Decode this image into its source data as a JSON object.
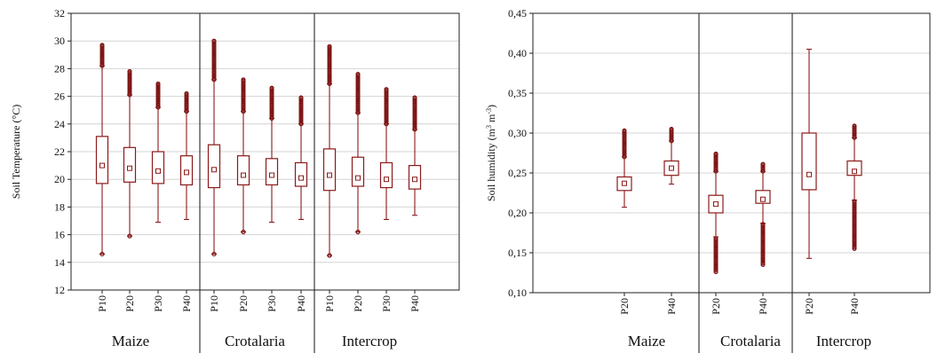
{
  "colors": {
    "box": "#8b1a1a",
    "outlier": "#7d1414"
  },
  "chart_data": [
    {
      "type": "box",
      "ylabel": "Soil Temperature (°C)",
      "ylim": [
        12,
        32
      ],
      "yticks": [
        "12",
        "14",
        "16",
        "18",
        "20",
        "22",
        "24",
        "26",
        "28",
        "30",
        "32"
      ],
      "grid": true,
      "groups": [
        {
          "name": "Maize",
          "series": [
            {
              "name": "P10",
              "min": 14.6,
              "q1": 19.7,
              "median": 21.0,
              "q3": 23.1,
              "max": 28.2,
              "outliers_from": 28.2,
              "outliers_to": 29.7
            },
            {
              "name": "P20",
              "min": 15.9,
              "q1": 19.8,
              "median": 20.8,
              "q3": 22.3,
              "max": 26.1,
              "outliers_from": 26.1,
              "outliers_to": 27.8
            },
            {
              "name": "P30",
              "min": 16.9,
              "q1": 19.7,
              "median": 20.6,
              "q3": 22.0,
              "max": 25.2,
              "outliers_from": 25.2,
              "outliers_to": 26.9
            },
            {
              "name": "P40",
              "min": 17.1,
              "q1": 19.6,
              "median": 20.5,
              "q3": 21.7,
              "max": 24.9,
              "outliers_from": 24.9,
              "outliers_to": 26.2
            }
          ]
        },
        {
          "name": "Crotalaria",
          "series": [
            {
              "name": "P10",
              "min": 14.6,
              "q1": 19.4,
              "median": 20.7,
              "q3": 22.5,
              "max": 27.2,
              "outliers_from": 27.2,
              "outliers_to": 30.0
            },
            {
              "name": "P20",
              "min": 16.2,
              "q1": 19.6,
              "median": 20.3,
              "q3": 21.7,
              "max": 24.9,
              "outliers_from": 24.9,
              "outliers_to": 27.2
            },
            {
              "name": "P30",
              "min": 16.9,
              "q1": 19.6,
              "median": 20.3,
              "q3": 21.5,
              "max": 24.4,
              "outliers_from": 24.4,
              "outliers_to": 26.6
            },
            {
              "name": "P40",
              "min": 17.1,
              "q1": 19.5,
              "median": 20.1,
              "q3": 21.2,
              "max": 24.0,
              "outliers_from": 24.0,
              "outliers_to": 25.9
            }
          ]
        },
        {
          "name": "Intercrop",
          "series": [
            {
              "name": "P10",
              "min": 14.5,
              "q1": 19.2,
              "median": 20.3,
              "q3": 22.2,
              "max": 26.9,
              "outliers_from": 26.9,
              "outliers_to": 29.6
            },
            {
              "name": "P20",
              "min": 16.2,
              "q1": 19.5,
              "median": 20.1,
              "q3": 21.6,
              "max": 24.8,
              "outliers_from": 24.8,
              "outliers_to": 27.6
            },
            {
              "name": "P30",
              "min": 17.1,
              "q1": 19.4,
              "median": 20.0,
              "q3": 21.2,
              "max": 24.0,
              "outliers_from": 24.0,
              "outliers_to": 26.5
            },
            {
              "name": "P40",
              "min": 17.4,
              "q1": 19.3,
              "median": 20.0,
              "q3": 21.0,
              "max": 23.6,
              "outliers_from": 23.6,
              "outliers_to": 25.9
            }
          ]
        }
      ]
    },
    {
      "type": "box",
      "ylabel_main": "Soil humidity (m",
      "ylabel_sup1": "3",
      "ylabel_mid": " m",
      "ylabel_sup2": "-3",
      "ylabel_end": ")",
      "ylim": [
        0.1,
        0.45
      ],
      "yticks": [
        "0,10",
        "0,15",
        "0,20",
        "0,25",
        "0,30",
        "0,35",
        "0,40",
        "0,45"
      ],
      "grid": true,
      "groups": [
        {
          "name": "Maize",
          "series": [
            {
              "name": "P20",
              "min": 0.207,
              "q1": 0.228,
              "median": 0.237,
              "q3": 0.245,
              "max": 0.27,
              "outliers_from": 0.27,
              "outliers_to": 0.303
            },
            {
              "name": "P40",
              "min": 0.236,
              "q1": 0.247,
              "median": 0.256,
              "q3": 0.265,
              "max": 0.29,
              "outliers_from": 0.29,
              "outliers_to": 0.305
            }
          ]
        },
        {
          "name": "Crotalaria",
          "series": [
            {
              "name": "P20",
              "min": 0.17,
              "q1": 0.2,
              "median": 0.211,
              "q3": 0.222,
              "max": 0.252,
              "outliers_from": 0.252,
              "outliers_to": 0.274,
              "outliers_low_from": 0.126,
              "outliers_low_to": 0.168
            },
            {
              "name": "P40",
              "min": 0.187,
              "q1": 0.212,
              "median": 0.217,
              "q3": 0.228,
              "max": 0.252,
              "outliers_from": 0.252,
              "outliers_to": 0.261,
              "outliers_low_from": 0.135,
              "outliers_low_to": 0.186
            }
          ]
        },
        {
          "name": "Intercrop",
          "series": [
            {
              "name": "P20",
              "min": 0.143,
              "q1": 0.229,
              "median": 0.248,
              "q3": 0.3,
              "max": 0.405
            },
            {
              "name": "P40",
              "min": 0.216,
              "q1": 0.247,
              "median": 0.252,
              "q3": 0.265,
              "max": 0.294,
              "outliers_from": 0.294,
              "outliers_to": 0.309,
              "outliers_low_from": 0.155,
              "outliers_low_to": 0.215
            }
          ]
        }
      ]
    }
  ]
}
